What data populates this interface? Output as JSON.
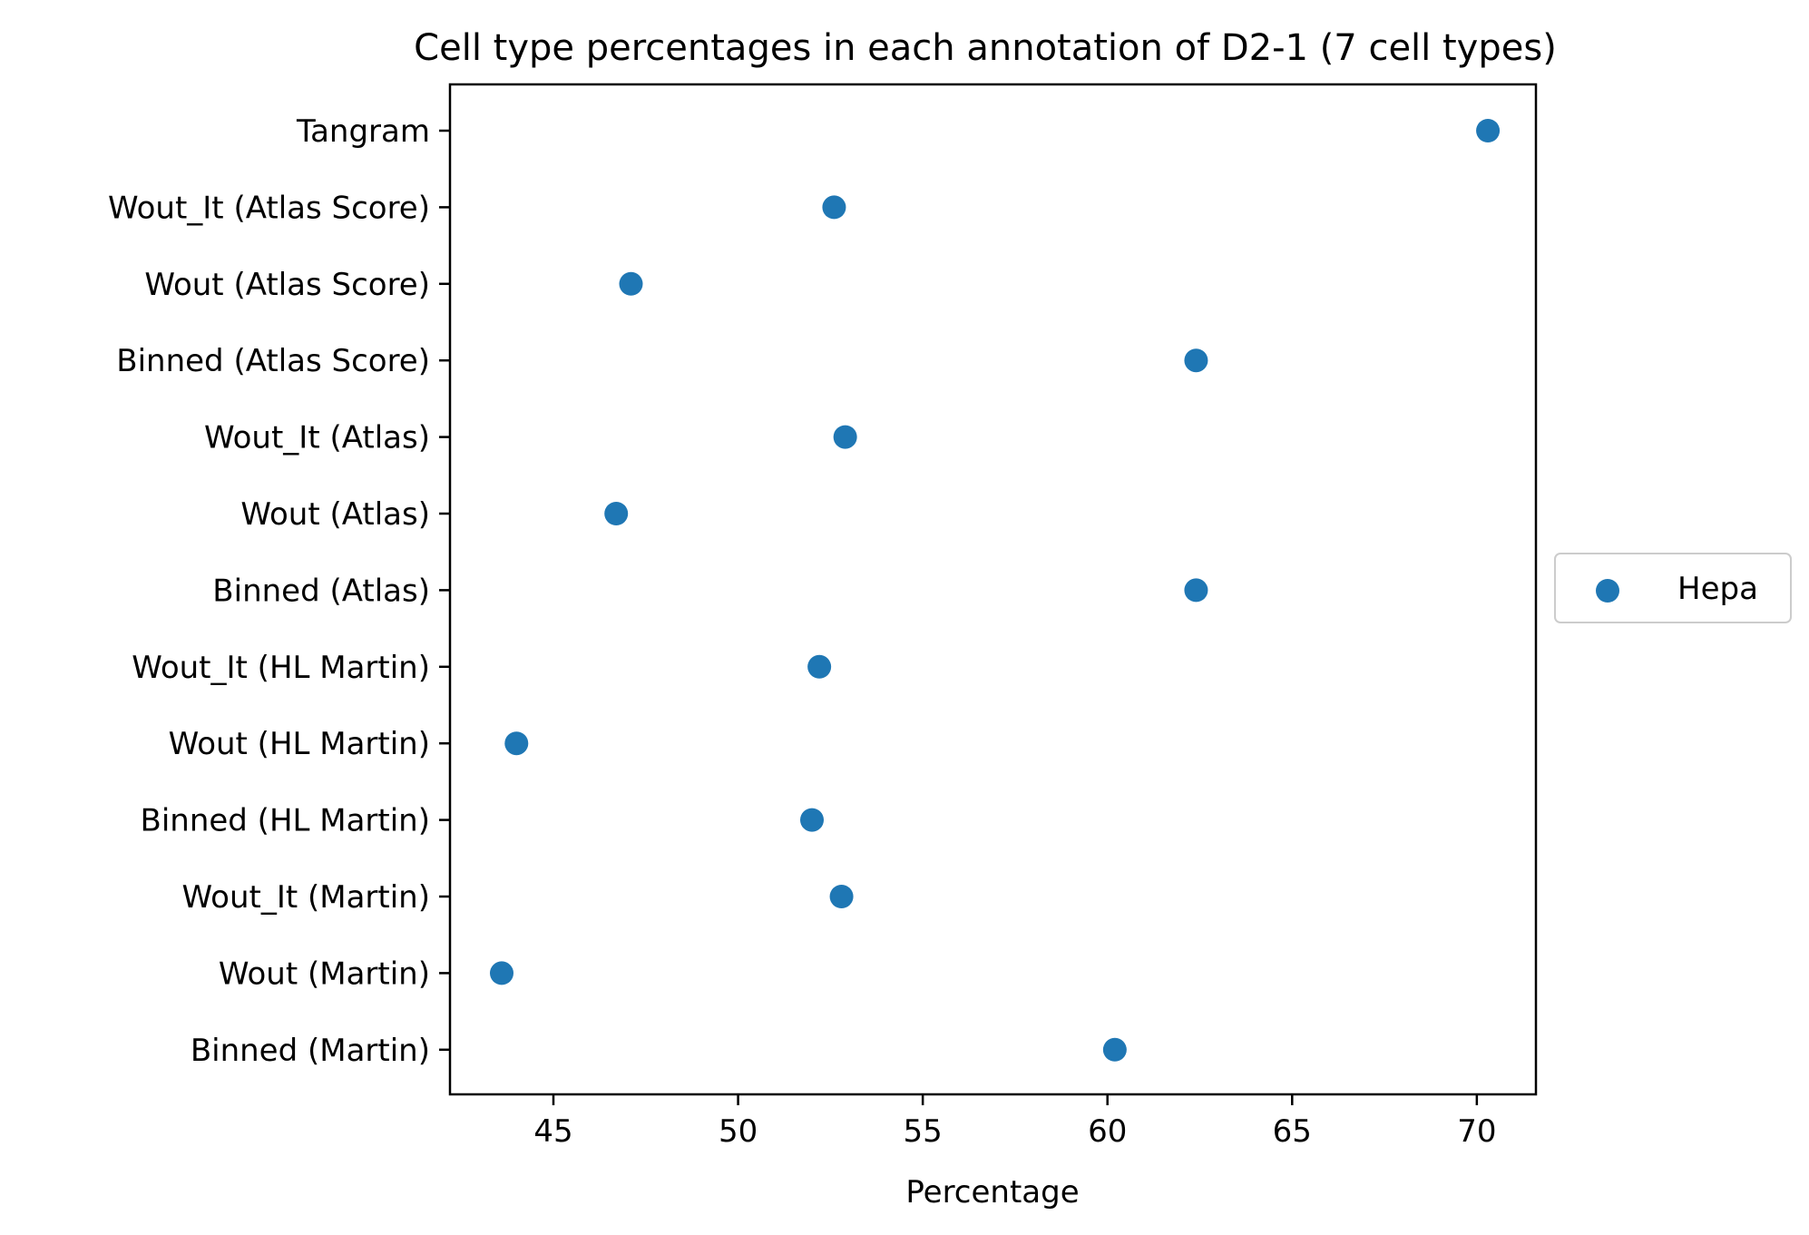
{
  "chart_data": {
    "type": "scatter",
    "title": "Cell type percentages in each annotation of D2-1 (7 cell types)",
    "xlabel": "Percentage",
    "ylabel": "",
    "xlim": [
      42.2,
      71.6
    ],
    "xticks": [
      45,
      50,
      55,
      60,
      65,
      70
    ],
    "categories": [
      "Tangram",
      "Wout_It (Atlas Score)",
      "Wout (Atlas Score)",
      "Binned (Atlas Score)",
      "Wout_It (Atlas)",
      "Wout (Atlas)",
      "Binned (Atlas)",
      "Wout_It (HL Martin)",
      "Wout (HL Martin)",
      "Binned (HL Martin)",
      "Wout_It (Martin)",
      "Wout (Martin)",
      "Binned (Martin)"
    ],
    "series": [
      {
        "name": "Hepa",
        "color": "#1f77b4",
        "values": [
          70.3,
          52.6,
          47.1,
          62.4,
          52.9,
          46.7,
          62.4,
          52.2,
          44.0,
          52.0,
          52.8,
          43.6,
          60.2
        ]
      }
    ],
    "grid": false,
    "legend": "center-right outside"
  }
}
